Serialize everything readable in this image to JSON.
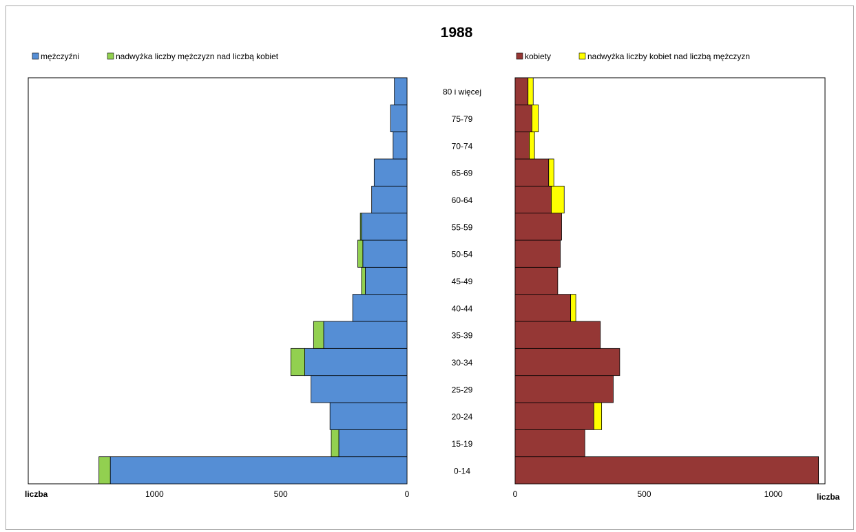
{
  "chart_data": {
    "type": "bar",
    "title": "1988",
    "categories": [
      "0-14",
      "15-19",
      "20-24",
      "25-29",
      "30-34",
      "35-39",
      "40-44",
      "45-49",
      "50-54",
      "55-59",
      "60-64",
      "65-69",
      "70-74",
      "75-79",
      "80 i więcej"
    ],
    "left_panel": {
      "direction": "reversed",
      "xlim": [
        0,
        1500
      ],
      "xticks": [
        "0",
        "500",
        "1000"
      ],
      "xlabel": "liczba",
      "series": [
        {
          "name": "mężczyźni",
          "color": "#558ed5",
          "values": [
            1175,
            270,
            305,
            380,
            405,
            330,
            215,
            165,
            175,
            180,
            140,
            130,
            55,
            65,
            50
          ]
        },
        {
          "name": "nadwyżka liczby mężczyzn nad liczbą kobiet",
          "color": "#92d050",
          "values": [
            45,
            30,
            0,
            0,
            55,
            40,
            0,
            15,
            20,
            5,
            0,
            0,
            0,
            0,
            0
          ]
        }
      ]
    },
    "right_panel": {
      "direction": "normal",
      "xlim": [
        0,
        1200
      ],
      "xticks": [
        "0",
        "500",
        "1000"
      ],
      "xlabel": "liczba",
      "series": [
        {
          "name": "kobiety",
          "color": "#953735",
          "values": [
            1175,
            270,
            305,
            380,
            405,
            330,
            215,
            165,
            175,
            180,
            140,
            130,
            55,
            65,
            50
          ]
        },
        {
          "name": "nadwyżka liczby kobiet nad liczbą mężczyzn",
          "color": "#ffff00",
          "values": [
            0,
            0,
            30,
            0,
            0,
            0,
            20,
            0,
            0,
            0,
            50,
            20,
            20,
            25,
            20
          ]
        }
      ]
    },
    "legend_position": "top"
  }
}
